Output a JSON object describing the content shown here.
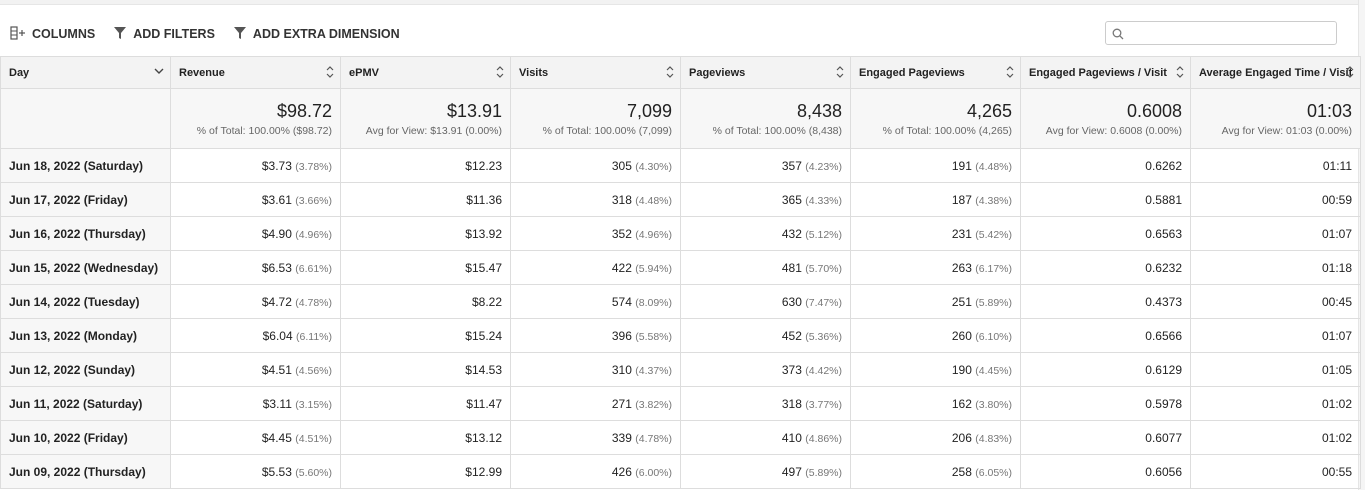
{
  "toolbar": {
    "buttons": [
      "COLUMNS",
      "ADD FILTERS",
      "ADD EXTRA DIMENSION"
    ]
  },
  "table": {
    "columns": [
      "Day",
      "Revenue",
      "ePMV",
      "Visits",
      "Pageviews",
      "Engaged Pageviews",
      "Engaged Pageviews / Visit",
      "Average Engaged Time / Visit"
    ],
    "totals": [
      {
        "value": "$98.72",
        "note": "% of Total: 100.00% ($98.72)"
      },
      {
        "value": "$13.91",
        "note": "Avg for View: $13.91 (0.00%)"
      },
      {
        "value": "7,099",
        "note": "% of Total: 100.00% (7,099)"
      },
      {
        "value": "8,438",
        "note": "% of Total: 100.00% (8,438)"
      },
      {
        "value": "4,265",
        "note": "% of Total: 100.00% (4,265)"
      },
      {
        "value": "0.6008",
        "note": "Avg for View: 0.6008 (0.00%)"
      },
      {
        "value": "01:03",
        "note": "Avg for View: 01:03 (0.00%)"
      }
    ],
    "rows": [
      {
        "day": "Jun 18, 2022 (Saturday)",
        "cells": [
          {
            "value": "$3.73",
            "share": "(3.78%)"
          },
          "$12.23",
          {
            "value": "305",
            "share": "(4.30%)"
          },
          {
            "value": "357",
            "share": "(4.23%)"
          },
          {
            "value": "191",
            "share": "(4.48%)"
          },
          "0.6262",
          "01:11"
        ]
      },
      {
        "day": "Jun 17, 2022 (Friday)",
        "cells": [
          {
            "value": "$3.61",
            "share": "(3.66%)"
          },
          "$11.36",
          {
            "value": "318",
            "share": "(4.48%)"
          },
          {
            "value": "365",
            "share": "(4.33%)"
          },
          {
            "value": "187",
            "share": "(4.38%)"
          },
          "0.5881",
          "00:59"
        ]
      },
      {
        "day": "Jun 16, 2022 (Thursday)",
        "cells": [
          {
            "value": "$4.90",
            "share": "(4.96%)"
          },
          "$13.92",
          {
            "value": "352",
            "share": "(4.96%)"
          },
          {
            "value": "432",
            "share": "(5.12%)"
          },
          {
            "value": "231",
            "share": "(5.42%)"
          },
          "0.6563",
          "01:07"
        ]
      },
      {
        "day": "Jun 15, 2022 (Wednesday)",
        "cells": [
          {
            "value": "$6.53",
            "share": "(6.61%)"
          },
          "$15.47",
          {
            "value": "422",
            "share": "(5.94%)"
          },
          {
            "value": "481",
            "share": "(5.70%)"
          },
          {
            "value": "263",
            "share": "(6.17%)"
          },
          "0.6232",
          "01:18"
        ]
      },
      {
        "day": "Jun 14, 2022 (Tuesday)",
        "cells": [
          {
            "value": "$4.72",
            "share": "(4.78%)"
          },
          "$8.22",
          {
            "value": "574",
            "share": "(8.09%)"
          },
          {
            "value": "630",
            "share": "(7.47%)"
          },
          {
            "value": "251",
            "share": "(5.89%)"
          },
          "0.4373",
          "00:45"
        ]
      },
      {
        "day": "Jun 13, 2022 (Monday)",
        "cells": [
          {
            "value": "$6.04",
            "share": "(6.11%)"
          },
          "$15.24",
          {
            "value": "396",
            "share": "(5.58%)"
          },
          {
            "value": "452",
            "share": "(5.36%)"
          },
          {
            "value": "260",
            "share": "(6.10%)"
          },
          "0.6566",
          "01:07"
        ]
      },
      {
        "day": "Jun 12, 2022 (Sunday)",
        "cells": [
          {
            "value": "$4.51",
            "share": "(4.56%)"
          },
          "$14.53",
          {
            "value": "310",
            "share": "(4.37%)"
          },
          {
            "value": "373",
            "share": "(4.42%)"
          },
          {
            "value": "190",
            "share": "(4.45%)"
          },
          "0.6129",
          "01:05"
        ]
      },
      {
        "day": "Jun 11, 2022 (Saturday)",
        "cells": [
          {
            "value": "$3.11",
            "share": "(3.15%)"
          },
          "$11.47",
          {
            "value": "271",
            "share": "(3.82%)"
          },
          {
            "value": "318",
            "share": "(3.77%)"
          },
          {
            "value": "162",
            "share": "(3.80%)"
          },
          "0.5978",
          "01:02"
        ]
      },
      {
        "day": "Jun 10, 2022 (Friday)",
        "cells": [
          {
            "value": "$4.45",
            "share": "(4.51%)"
          },
          "$13.12",
          {
            "value": "339",
            "share": "(4.78%)"
          },
          {
            "value": "410",
            "share": "(4.86%)"
          },
          {
            "value": "206",
            "share": "(4.83%)"
          },
          "0.6077",
          "01:02"
        ]
      },
      {
        "day": "Jun 09, 2022 (Thursday)",
        "cells": [
          {
            "value": "$5.53",
            "share": "(5.60%)"
          },
          "$12.99",
          {
            "value": "426",
            "share": "(6.00%)"
          },
          {
            "value": "497",
            "share": "(5.89%)"
          },
          {
            "value": "258",
            "share": "(6.05%)"
          },
          "0.6056",
          "00:55"
        ]
      }
    ]
  }
}
